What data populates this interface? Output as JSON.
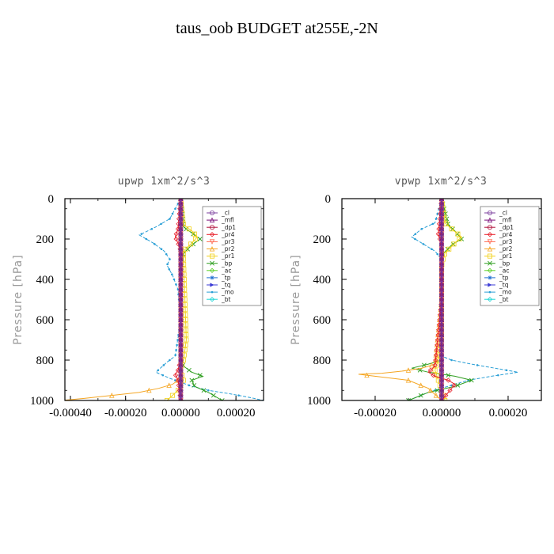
{
  "figure_title": "taus_oob  BUDGET at255E,-2N",
  "series_styles": [
    {
      "name": "_cl",
      "color": "#7b3f9e"
    },
    {
      "name": "_mfl",
      "color": "#7a0f7a"
    },
    {
      "name": "_dp1",
      "color": "#b0103a"
    },
    {
      "name": "_pr4",
      "color": "#e8202a"
    },
    {
      "name": "_pr3",
      "color": "#ff6a50"
    },
    {
      "name": "_pr2",
      "color": "#f5a623"
    },
    {
      "name": "_pr1",
      "color": "#f2d21b"
    },
    {
      "name": "_bp",
      "color": "#2e9e1f"
    },
    {
      "name": "_ac",
      "color": "#5fd12c"
    },
    {
      "name": "_tp",
      "color": "#1f6fd1"
    },
    {
      "name": "_tq",
      "color": "#3b3bd6"
    },
    {
      "name": "_mo",
      "color": "#2a9fd6"
    },
    {
      "name": "_bt",
      "color": "#1fd6d6"
    }
  ],
  "chart_data": [
    {
      "type": "line",
      "title": "upwp   1xm^2/s^3",
      "xlabel": "",
      "ylabel": "Pressure [hPa]",
      "xlim": [
        -0.00042,
        0.0003
      ],
      "ylim": [
        1000,
        0
      ],
      "xticks": [
        -0.0004,
        -0.0002,
        0.0,
        0.0002
      ],
      "xtick_labels": [
        "-0.00040",
        "-0.00020",
        "0.00000",
        "0.00020"
      ],
      "yticks": [
        0,
        200,
        400,
        600,
        800,
        1000
      ],
      "ytick_labels": [
        "0",
        "200",
        "400",
        "600",
        "800",
        "1000"
      ],
      "legend": "top-right",
      "grid": false,
      "series": [
        {
          "name": "_cl",
          "x": [
            0,
            0,
            0
          ],
          "y": [
            0,
            500,
            1000
          ]
        },
        {
          "name": "_mfl",
          "x": [
            0,
            0,
            0
          ],
          "y": [
            0,
            500,
            1000
          ]
        },
        {
          "name": "_dp1",
          "x": [
            0,
            0,
            0
          ],
          "y": [
            0,
            500,
            1000
          ]
        },
        {
          "name": "_pr4",
          "x": [
            0,
            -1e-05,
            -2e-05,
            -1e-05,
            0,
            0,
            0,
            -1e-05,
            -2e-05,
            -1e-05,
            0
          ],
          "y": [
            0,
            150,
            190,
            220,
            260,
            500,
            800,
            850,
            870,
            900,
            1000
          ]
        },
        {
          "name": "_pr3",
          "x": [
            0,
            0,
            0
          ],
          "y": [
            0,
            500,
            1000
          ]
        },
        {
          "name": "_pr2",
          "x": [
            0,
            0,
            0,
            -1e-05,
            -3e-05,
            -8e-05,
            -0.00015,
            -0.00025,
            -0.00035,
            -0.00043
          ],
          "y": [
            0,
            500,
            880,
            900,
            920,
            940,
            960,
            975,
            990,
            1000
          ]
        },
        {
          "name": "_pr1",
          "x": [
            0,
            1e-05,
            4e-05,
            6e-05,
            4e-05,
            1e-05,
            1e-05,
            2e-05,
            1e-05,
            0,
            1e-05,
            -1e-05,
            -5e-05
          ],
          "y": [
            0,
            130,
            160,
            190,
            220,
            260,
            300,
            700,
            800,
            850,
            900,
            950,
            1000
          ]
        },
        {
          "name": "_bp",
          "x": [
            0,
            1e-05,
            4e-05,
            7e-05,
            4e-05,
            1e-05,
            0,
            0,
            1e-05,
            4e-05,
            8e-05,
            4e-05,
            5e-05,
            0.0001,
            0.00015
          ],
          "y": [
            0,
            140,
            170,
            200,
            230,
            270,
            320,
            800,
            830,
            860,
            880,
            900,
            930,
            960,
            1000
          ]
        },
        {
          "name": "_ac",
          "x": [
            0,
            0,
            0
          ],
          "y": [
            0,
            500,
            1000
          ]
        },
        {
          "name": "_tp",
          "x": [
            0,
            0,
            0
          ],
          "y": [
            0,
            500,
            1000
          ]
        },
        {
          "name": "_tq",
          "x": [
            0,
            0,
            0
          ],
          "y": [
            0,
            500,
            1000
          ]
        },
        {
          "name": "_mo",
          "x": [
            0,
            -4e-05,
            -9e-05,
            -0.00015,
            -0.0001,
            -6e-05,
            -4e-05,
            -5e-05,
            -3e-05,
            -1e-05,
            0,
            -2e-05,
            -5e-05,
            -9e-05,
            -4e-05,
            0,
            4e-05,
            0.0001,
            0.00017,
            0.00025,
            0.0003
          ],
          "y": [
            0,
            100,
            140,
            180,
            220,
            260,
            300,
            330,
            380,
            450,
            600,
            780,
            810,
            860,
            890,
            910,
            930,
            950,
            965,
            985,
            1000
          ]
        },
        {
          "name": "_bt",
          "x": [
            0,
            0,
            0
          ],
          "y": [
            0,
            500,
            1000
          ]
        }
      ]
    },
    {
      "type": "line",
      "title": "vpwp   1xm^2/s^3",
      "xlabel": "",
      "ylabel": "Pressure [hPa]",
      "xlim": [
        -0.0003,
        0.0003
      ],
      "ylim": [
        1000,
        0
      ],
      "xticks": [
        -0.0002,
        0.0,
        0.0002
      ],
      "xtick_labels": [
        "-0.00020",
        "0.00000",
        "0.00020"
      ],
      "yticks": [
        0,
        200,
        400,
        600,
        800,
        1000
      ],
      "ytick_labels": [
        "0",
        "200",
        "400",
        "600",
        "800",
        "1000"
      ],
      "legend": "top-right",
      "grid": false,
      "series": [
        {
          "name": "_cl",
          "x": [
            0,
            0,
            0
          ],
          "y": [
            0,
            500,
            1000
          ]
        },
        {
          "name": "_mfl",
          "x": [
            0,
            0,
            0
          ],
          "y": [
            0,
            500,
            1000
          ]
        },
        {
          "name": "_dp1",
          "x": [
            0,
            0,
            0
          ],
          "y": [
            0,
            500,
            1000
          ]
        },
        {
          "name": "_pr4",
          "x": [
            0,
            -1e-05,
            0,
            0,
            -2e-05,
            -4e-05,
            -2e-05,
            2e-05,
            4e-05,
            2e-05,
            0
          ],
          "y": [
            0,
            180,
            220,
            500,
            830,
            860,
            880,
            900,
            920,
            960,
            1000
          ]
        },
        {
          "name": "_pr3",
          "x": [
            0,
            0,
            0
          ],
          "y": [
            0,
            500,
            1000
          ]
        },
        {
          "name": "_pr2",
          "x": [
            0,
            0,
            -2e-05,
            -6e-05,
            -0.00012,
            -0.00018,
            -0.00025,
            -0.0001,
            -4e-05,
            0
          ],
          "y": [
            0,
            500,
            820,
            840,
            855,
            865,
            870,
            900,
            940,
            1000
          ]
        },
        {
          "name": "_pr1",
          "x": [
            0,
            1e-05,
            3e-05,
            6e-05,
            4e-05,
            1e-05,
            0,
            0,
            -1e-05,
            -2e-05,
            1e-05
          ],
          "y": [
            0,
            120,
            150,
            190,
            220,
            270,
            330,
            700,
            800,
            850,
            1000
          ]
        },
        {
          "name": "_bp",
          "x": [
            0,
            2e-05,
            4e-05,
            6e-05,
            3e-05,
            0,
            0,
            -4e-05,
            -9e-05,
            -4e-05,
            4e-05,
            9e-05,
            4e-05,
            -4e-05,
            -0.0001
          ],
          "y": [
            0,
            130,
            160,
            200,
            230,
            280,
            800,
            820,
            840,
            860,
            880,
            900,
            930,
            960,
            1000
          ]
        },
        {
          "name": "_ac",
          "x": [
            0,
            0,
            0
          ],
          "y": [
            0,
            500,
            1000
          ]
        },
        {
          "name": "_tp",
          "x": [
            0,
            0,
            0
          ],
          "y": [
            0,
            500,
            1000
          ]
        },
        {
          "name": "_tq",
          "x": [
            0,
            0,
            0
          ],
          "y": [
            0,
            500,
            1000
          ]
        },
        {
          "name": "_mo",
          "x": [
            0,
            -2e-05,
            -6e-05,
            -9e-05,
            -6e-05,
            -2e-05,
            0,
            0,
            3e-05,
            9e-05,
            0.00016,
            0.00023,
            0.00015,
            8e-05,
            2e-05,
            -4e-05,
            -0.0001
          ],
          "y": [
            0,
            120,
            150,
            190,
            220,
            260,
            300,
            780,
            800,
            820,
            840,
            860,
            880,
            900,
            930,
            960,
            1000
          ]
        },
        {
          "name": "_bt",
          "x": [
            0,
            0,
            0
          ],
          "y": [
            0,
            500,
            1000
          ]
        }
      ]
    }
  ]
}
